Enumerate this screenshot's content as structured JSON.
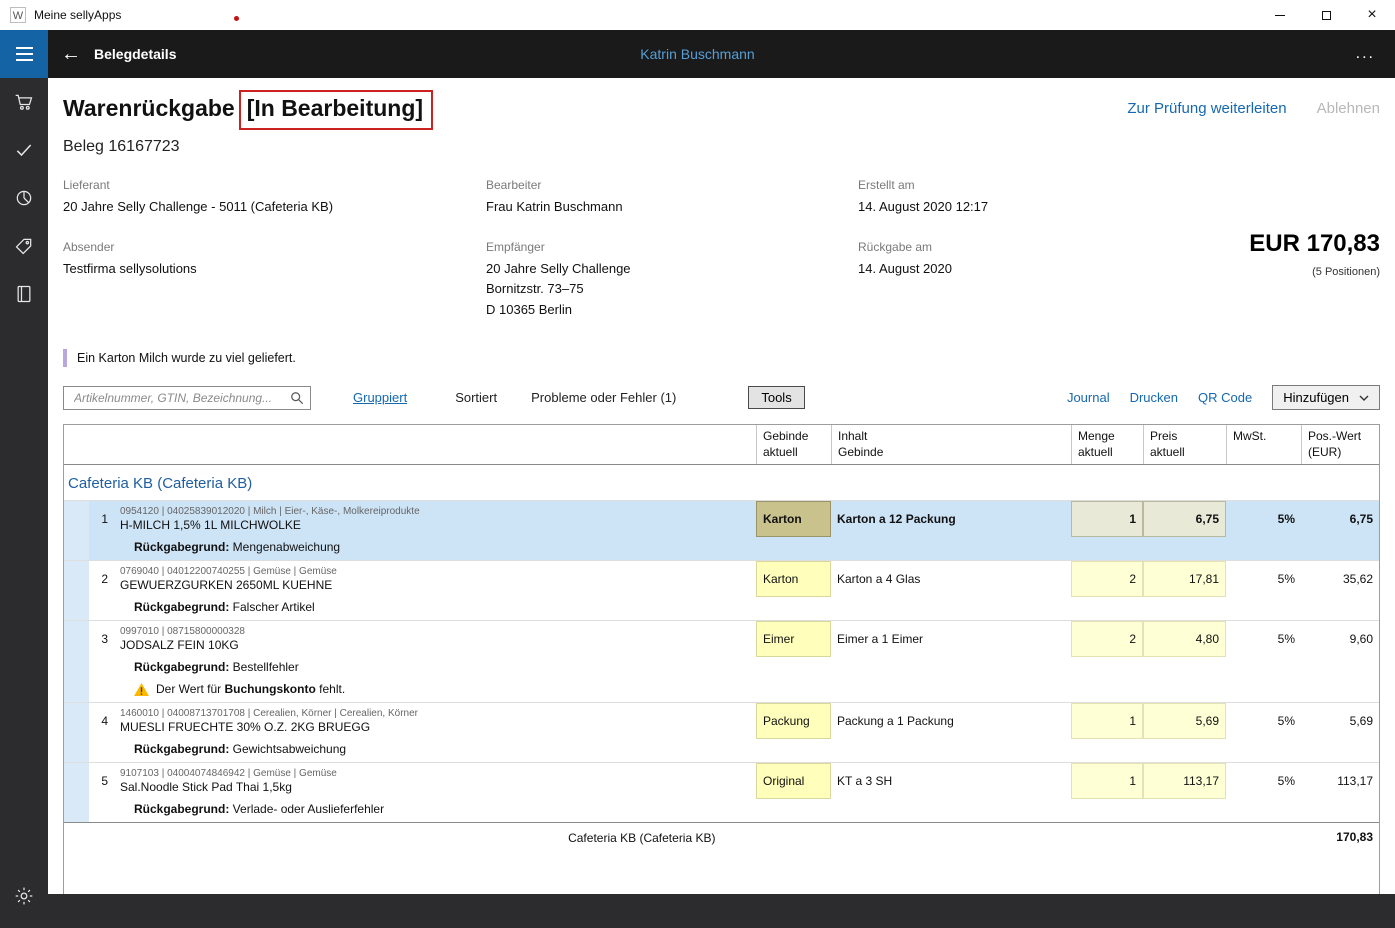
{
  "window": {
    "title": "Meine sellyApps"
  },
  "header": {
    "back": "←",
    "title": "Belegdetails",
    "user": "Katrin Buschmann",
    "more": "..."
  },
  "document": {
    "type": "Warenrückgabe",
    "status": "[In Bearbeitung]",
    "beleg": "Beleg 16167723",
    "forward_action": "Zur Prüfung weiterleiten",
    "reject_action": "Ablehnen",
    "fields": [
      {
        "label": "Lieferant",
        "value": "20 Jahre Selly Challenge - 5011 (Cafeteria KB)"
      },
      {
        "label": "Bearbeiter",
        "value": "Frau Katrin Buschmann"
      },
      {
        "label": "Erstellt am",
        "value": "14. August 2020 12:17"
      },
      {
        "label": "Absender",
        "value": "Testfirma sellysolutions"
      },
      {
        "label": "Empfänger",
        "value": "20 Jahre Selly Challenge\nBornitzstr. 73–75\nD 10365 Berlin"
      },
      {
        "label": "Rückgabe am",
        "value": "14. August 2020"
      }
    ],
    "total_amount": "EUR 170,83",
    "total_positions": "(5 Positionen)",
    "note": "Ein Karton Milch wurde zu viel geliefert."
  },
  "toolbar": {
    "search_placeholder": "Artikelnummer, GTIN, Bezeichnung...",
    "grouped": "Gruppiert",
    "sorted": "Sortiert",
    "problems": "Probleme oder Fehler (1)",
    "tools": "Tools",
    "journal": "Journal",
    "print": "Drucken",
    "qr_code": "QR Code",
    "add": "Hinzufügen"
  },
  "table": {
    "headers": {
      "gebinde": "Gebinde\naktuell",
      "inhalt": "Inhalt\nGebinde",
      "menge": "Menge\naktuell",
      "preis": "Preis\naktuell",
      "mwst": "MwSt.",
      "wert": "Pos.-Wert\n(EUR)"
    },
    "group_title": "Cafeteria KB (Cafeteria KB)",
    "reason_label": "Rückgabegrund:",
    "rows": [
      {
        "pos": "1",
        "meta": "0954120 | 04025839012020 | Milch | Eier-, Käse-, Molkereiprodukte",
        "name": "H-MILCH 1,5% 1L MILCHWOLKE",
        "gebinde": "Karton",
        "inhalt": "Karton a 12 Packung",
        "menge": "1",
        "preis": "6,75",
        "mwst": "5%",
        "wert": "6,75",
        "reason": "Mengenabweichung",
        "selected": true
      },
      {
        "pos": "2",
        "meta": "0769040 | 04012200740255 | Gemüse | Gemüse",
        "name": "GEWUERZGURKEN 2650ML KUEHNE",
        "gebinde": "Karton",
        "inhalt": "Karton a 4 Glas",
        "menge": "2",
        "preis": "17,81",
        "mwst": "5%",
        "wert": "35,62",
        "reason": "Falscher Artikel",
        "selected": false
      },
      {
        "pos": "3",
        "meta": "0997010 | 08715800000328",
        "name": "JODSALZ FEIN 10KG",
        "gebinde": "Eimer",
        "inhalt": "Eimer a 1 Eimer",
        "menge": "2",
        "preis": "4,80",
        "mwst": "5%",
        "wert": "9,60",
        "reason": "Bestellfehler",
        "selected": false,
        "warning": {
          "pre": "Der Wert für ",
          "bold": "Buchungskonto",
          "post": " fehlt."
        }
      },
      {
        "pos": "4",
        "meta": "1460010 | 04008713701708 | Cerealien, Körner | Cerealien, Körner",
        "name": "MUESLI FRUECHTE 30% O.Z. 2KG BRUEGG",
        "gebinde": "Packung",
        "inhalt": "Packung a 1 Packung",
        "menge": "1",
        "preis": "5,69",
        "mwst": "5%",
        "wert": "5,69",
        "reason": "Gewichtsabweichung",
        "selected": false
      },
      {
        "pos": "5",
        "meta": "9107103 | 04004074846942 | Gemüse | Gemüse",
        "name": "Sal.Noodle Stick Pad Thai 1,5kg",
        "gebinde": "Original",
        "inhalt": "KT a 3 SH",
        "menge": "1",
        "preis": "113,17",
        "mwst": "5%",
        "wert": "113,17",
        "reason": "Verlade- oder Auslieferfehler",
        "selected": false
      }
    ],
    "footer_label": "Cafeteria KB (Cafeteria KB)",
    "footer_total": "170,83"
  }
}
